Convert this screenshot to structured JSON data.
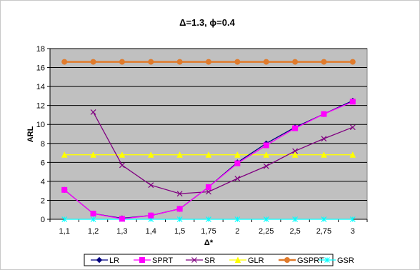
{
  "chart_data": {
    "type": "line",
    "title": "Δ=1.3, ϕ=0.4",
    "xlabel": "Δ*",
    "ylabel": "ARL",
    "categories": [
      "1,1",
      "1,2",
      "1,3",
      "1,4",
      "1,5",
      "1,75",
      "2",
      "2,25",
      "2,5",
      "2,75",
      "3"
    ],
    "ylim": [
      0,
      18
    ],
    "yticks": [
      "0",
      "2",
      "4",
      "6",
      "8",
      "10",
      "12",
      "14",
      "16",
      "18"
    ],
    "grid": true,
    "legend_position": "bottom",
    "series": [
      {
        "name": "LR",
        "color": "#000080",
        "marker": "diamond",
        "values": [
          3.1,
          0.6,
          0.1,
          0.4,
          1.1,
          3.4,
          6.0,
          8.0,
          9.7,
          11.1,
          12.5
        ]
      },
      {
        "name": "SPRT",
        "color": "#ff00ff",
        "marker": "square",
        "values": [
          3.1,
          0.6,
          0.05,
          0.4,
          1.1,
          3.4,
          5.9,
          7.8,
          9.6,
          11.1,
          12.4
        ]
      },
      {
        "name": "SR",
        "color": "#800080",
        "marker": "x",
        "values": [
          null,
          11.3,
          5.7,
          3.6,
          2.7,
          2.9,
          4.3,
          5.6,
          7.2,
          8.5,
          9.7
        ]
      },
      {
        "name": "GLR",
        "color": "#ffff00",
        "marker": "triangle",
        "values": [
          6.8,
          6.8,
          6.8,
          6.8,
          6.8,
          6.8,
          6.8,
          6.8,
          6.8,
          6.8,
          6.8
        ]
      },
      {
        "name": "GSPRT",
        "color": "#e07b2c",
        "marker": "circle",
        "values": [
          16.6,
          16.6,
          16.6,
          16.6,
          16.6,
          16.6,
          16.6,
          16.6,
          16.6,
          16.6,
          16.6
        ]
      },
      {
        "name": "GSR",
        "color": "#00ffff",
        "marker": "star",
        "values": [
          0,
          0,
          0,
          0,
          0,
          0,
          0,
          0,
          0,
          0,
          0
        ]
      }
    ]
  }
}
